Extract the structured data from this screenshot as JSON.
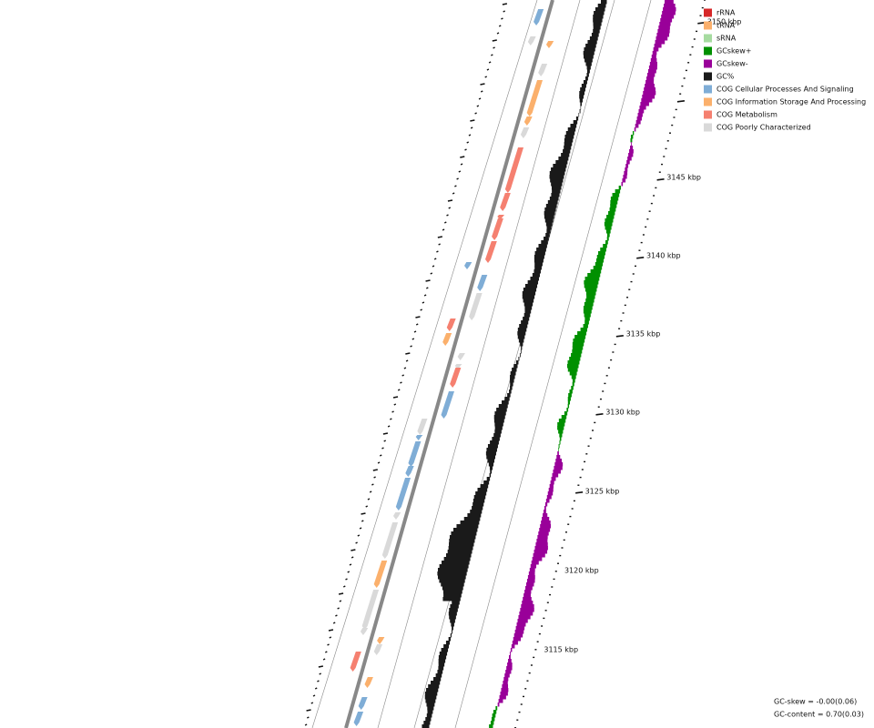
{
  "legend": {
    "items": [
      {
        "label": "rRNA",
        "color": "#d62728"
      },
      {
        "label": "tRNA",
        "color": "#fbb06c"
      },
      {
        "label": "sRNA",
        "color": "#a6dba0"
      },
      {
        "label": "GCskew+",
        "color": "#009000"
      },
      {
        "label": "GCskew-",
        "color": "#990099"
      },
      {
        "label": "GC%",
        "color": "#1a1a1a"
      },
      {
        "label": "COG Cellular Processes And Signaling",
        "color": "#7fadd6"
      },
      {
        "label": "COG Information Storage And Processing",
        "color": "#fbb06c"
      },
      {
        "label": "COG Metabolism",
        "color": "#f58070"
      },
      {
        "label": "COG Poorly Characterized",
        "color": "#d9d9d9"
      }
    ]
  },
  "scale": {
    "labels": [
      "3150 kbp",
      "3145 kbp",
      "3140 kbp",
      "3135 kbp",
      "3130 kbp",
      "3125 kbp",
      "3120 kbp",
      "3115 kbp"
    ]
  },
  "footer": {
    "gc_skew": "GC-skew = -0.00(0.06)",
    "gc_content": "GC-content = 0.70(0.03)"
  }
}
